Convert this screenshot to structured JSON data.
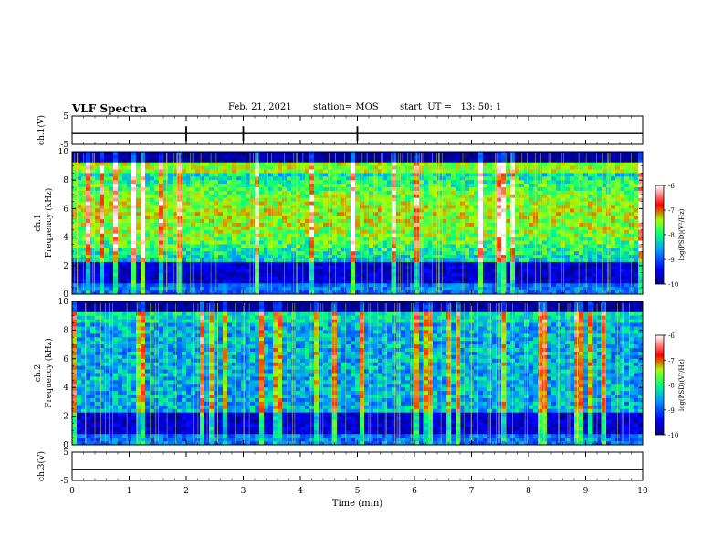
{
  "header": {
    "title": "VLF Spectra",
    "date": "Feb. 21, 2021",
    "station": "station= MOS",
    "start": "start  UT =   13: 50: 1"
  },
  "chart_data": [
    {
      "type": "line",
      "name": "ch1-waveform",
      "ylabel": "ch.1(V)",
      "ylim": [
        -5,
        5
      ],
      "yticks": [
        "5",
        "-5"
      ],
      "xlim": [
        0,
        10
      ],
      "x": [
        0,
        10
      ],
      "y": [
        -1.2,
        -1.2
      ]
    },
    {
      "type": "heatmap",
      "name": "ch1-spectrogram",
      "ylabel_lines": [
        "ch.1",
        "Frequency (kHz)"
      ],
      "ylim": [
        0,
        10
      ],
      "yticks": [
        "0",
        "2",
        "4",
        "6",
        "8",
        "10"
      ],
      "xlim": [
        0,
        10
      ],
      "colorbar": {
        "label": "log(PSD)(V²/Hz)",
        "ticks": [
          "-6",
          "-7",
          "-8",
          "-9",
          "-10"
        ],
        "range": [
          -10,
          -6
        ]
      }
    },
    {
      "type": "heatmap",
      "name": "ch2-spectrogram",
      "ylabel_lines": [
        "ch.2",
        "Frequency (kHz)"
      ],
      "ylim": [
        0,
        10
      ],
      "yticks": [
        "0",
        "2",
        "4",
        "6",
        "8",
        "10"
      ],
      "xlim": [
        0,
        10
      ],
      "colorbar": {
        "label": "log(PSD)(V²/Hz)",
        "ticks": [
          "-6",
          "-7",
          "-8",
          "-9",
          "-10"
        ],
        "range": [
          -10,
          -6
        ]
      }
    },
    {
      "type": "line",
      "name": "ch3-waveform",
      "ylabel": "ch.3(V)",
      "ylim": [
        -5,
        5
      ],
      "yticks": [
        "5",
        "-5"
      ],
      "xlim": [
        0,
        10
      ],
      "x": [
        0,
        10
      ],
      "y": [
        -1.2,
        -1.2
      ]
    }
  ],
  "xaxis": {
    "label": "Time (min)",
    "ticks": [
      "0",
      "1",
      "2",
      "3",
      "4",
      "5",
      "6",
      "7",
      "8",
      "9",
      "10"
    ]
  },
  "colors": {
    "axis": "#000000",
    "background": "#ffffff"
  }
}
